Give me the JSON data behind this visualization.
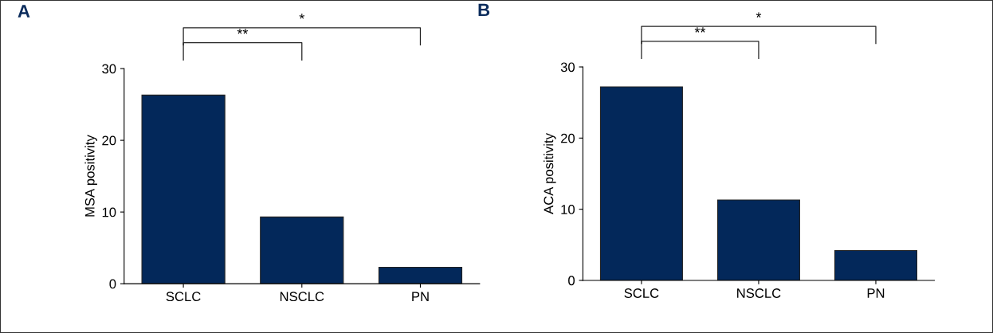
{
  "chart_data": [
    {
      "type": "bar",
      "title": "A",
      "ylabel": "MSA positivity",
      "categories": [
        "SCLC",
        "NSCLC",
        "PN"
      ],
      "values": [
        26.3,
        9.3,
        2.3
      ],
      "color": "#03285a",
      "ylim": [
        0,
        30
      ],
      "yticks": [
        0,
        10,
        20,
        30
      ],
      "grid": false,
      "annotations": [
        "**",
        "*"
      ]
    },
    {
      "type": "bar",
      "title": "B",
      "ylabel": "ACA positivity",
      "categories": [
        "SCLC",
        "NSCLC",
        "PN"
      ],
      "values": [
        27.2,
        11.3,
        4.2
      ],
      "color": "#03285a",
      "ylim": [
        0,
        30
      ],
      "yticks": [
        0,
        10,
        20,
        30
      ],
      "grid": false,
      "annotations": [
        "**",
        "*"
      ]
    }
  ]
}
